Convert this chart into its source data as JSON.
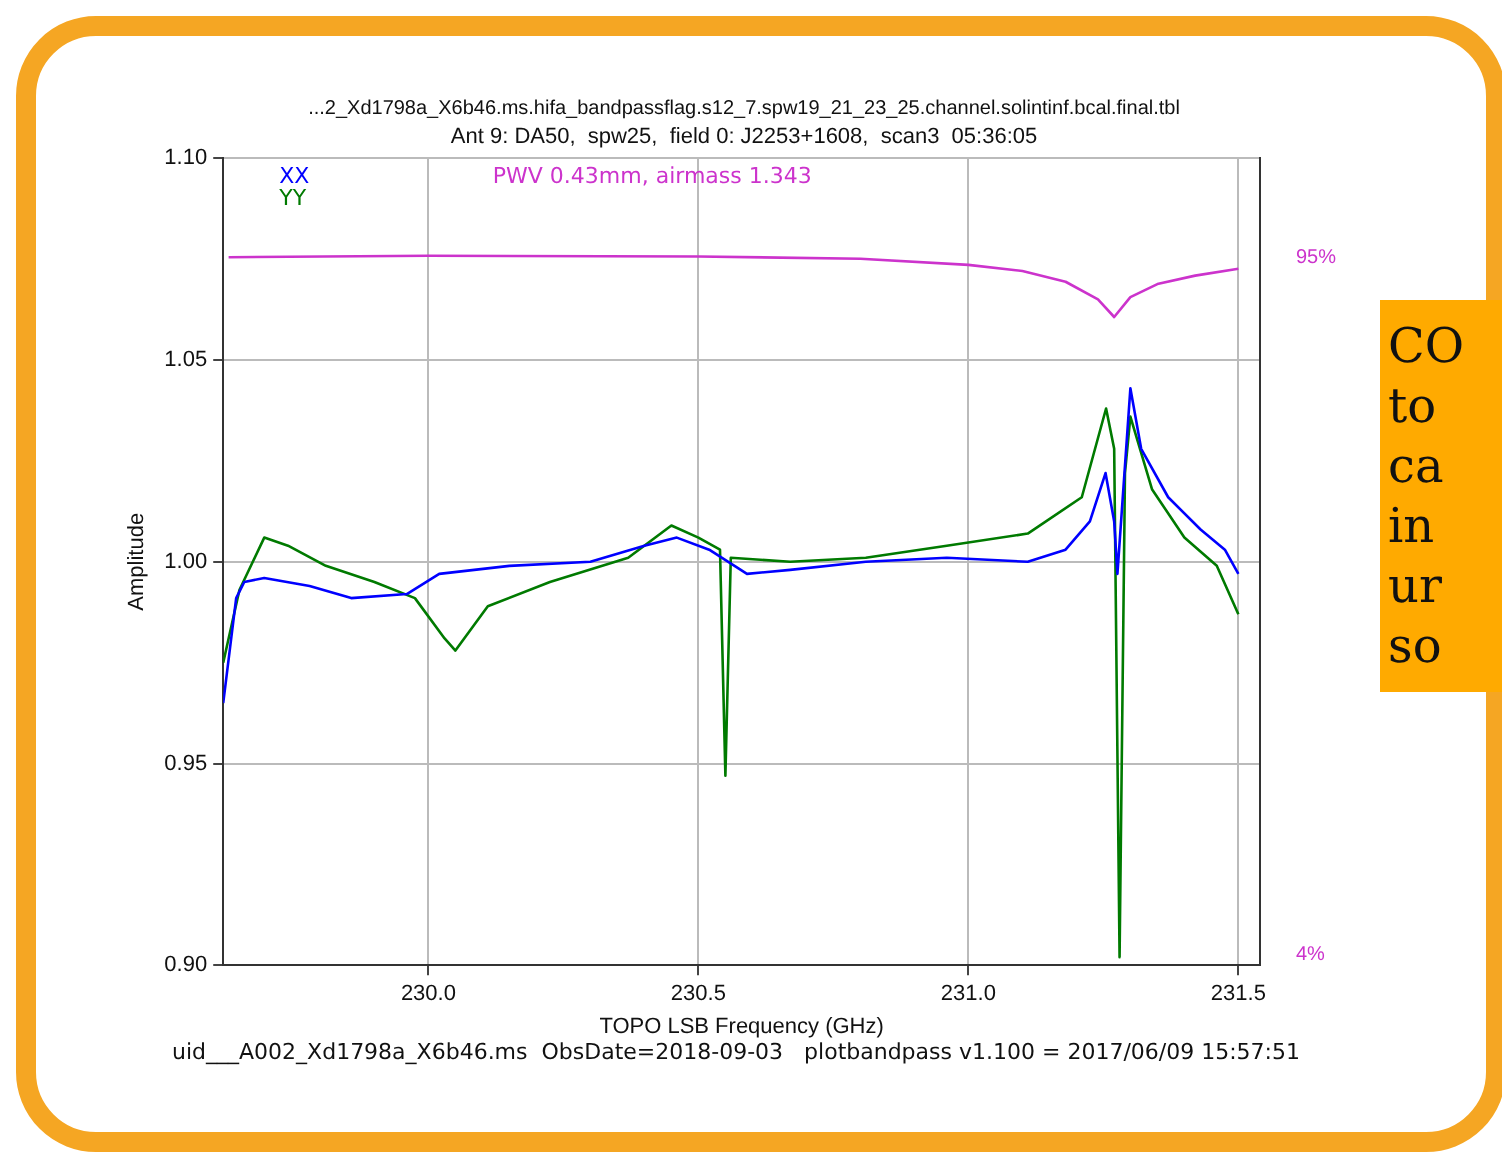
{
  "chart_data": {
    "type": "line",
    "title": "...2_Xd1798a_X6b46.ms.hifa_bandpassflag.s12_7.spw19_21_23_25.channel.solintinf.bcal.final.tbl",
    "subtitle": "Ant 9: DA50,  spw25,  field 0: J2253+1608,  scan3  05:36:05",
    "xlabel": "TOPO LSB Frequency (GHz)",
    "ylabel": "Amplitude",
    "annotations": [
      "uid___A002_Xd1798a_X6b46.ms  ObsDate=2018-09-03   plotbandpass v1.100 = 2017/06/09 15:57:51",
      "CO\nto\nca\nin\nur\nso"
    ],
    "series": [
      {
        "name": "XX",
        "color": "#0000ff",
        "x": [
          229.62,
          229.644,
          229.659,
          229.696,
          229.78,
          229.857,
          229.96,
          230.02,
          230.15,
          230.3,
          230.4,
          230.46,
          230.52,
          230.59,
          230.67,
          230.81,
          230.96,
          231.11,
          231.18,
          231.225,
          231.254,
          231.27,
          231.276,
          231.3,
          231.32,
          231.37,
          231.43,
          231.475,
          231.5
        ],
        "values": [
          0.965,
          0.991,
          0.995,
          0.996,
          0.994,
          0.991,
          0.992,
          0.997,
          0.999,
          1.0,
          1.004,
          1.006,
          1.003,
          0.997,
          0.998,
          1.0,
          1.001,
          1.0,
          1.003,
          1.01,
          1.022,
          1.01,
          0.997,
          1.043,
          1.028,
          1.016,
          1.008,
          1.003,
          0.997
        ]
      },
      {
        "name": "YY",
        "color": "#007a00",
        "x": [
          229.62,
          229.65,
          229.696,
          229.74,
          229.81,
          229.9,
          229.975,
          230.03,
          230.05,
          230.11,
          230.225,
          230.37,
          230.45,
          230.5,
          230.54,
          230.55,
          230.56,
          230.67,
          230.81,
          230.96,
          231.11,
          231.21,
          231.255,
          231.27,
          231.28,
          231.29,
          231.3,
          231.34,
          231.4,
          231.46,
          231.5
        ],
        "values": [
          0.975,
          0.993,
          1.006,
          1.004,
          0.999,
          0.995,
          0.991,
          0.981,
          0.978,
          0.989,
          0.995,
          1.001,
          1.009,
          1.006,
          1.003,
          0.947,
          1.001,
          1.0,
          1.001,
          1.004,
          1.007,
          1.016,
          1.038,
          1.028,
          0.902,
          1.022,
          1.036,
          1.018,
          1.006,
          0.999,
          0.987
        ]
      },
      {
        "name": "PWV 0.43mm, airmass 1.343",
        "color": "#cc33cc",
        "axis": "y2",
        "x": [
          229.63,
          230.0,
          230.5,
          230.8,
          231.0,
          231.1,
          231.18,
          231.24,
          231.27,
          231.3,
          231.35,
          231.42,
          231.5
        ],
        "values": [
          95,
          95.2,
          95.1,
          94.8,
          94,
          93.2,
          91.8,
          89.5,
          87.2,
          89.8,
          91.5,
          92.6,
          93.5
        ]
      }
    ],
    "xlim": [
      229.62,
      231.54
    ],
    "xticks": [
      {
        "value": 230,
        "label": "230.0"
      },
      {
        "value": 230.5,
        "label": "230.5"
      },
      {
        "value": 231,
        "label": "231.0"
      },
      {
        "value": 231.5,
        "label": "231.5"
      }
    ],
    "ylim": [
      0.9,
      1.1
    ],
    "yticks": [
      {
        "value": 0.9,
        "label": "0.90"
      },
      {
        "value": 0.95,
        "label": "0.95"
      },
      {
        "value": 1.0,
        "label": "1.00"
      },
      {
        "value": 1.05,
        "label": "1.05"
      },
      {
        "value": 1.1,
        "label": "1.10"
      }
    ],
    "y2lim": [
      2.6,
      107.9
    ],
    "y2ticks": [
      {
        "value": 4,
        "label": "4%"
      },
      {
        "value": 95,
        "label": "95%"
      }
    ],
    "grid": true,
    "legend": "top left",
    "marker": "none",
    "line_style": "solid"
  }
}
